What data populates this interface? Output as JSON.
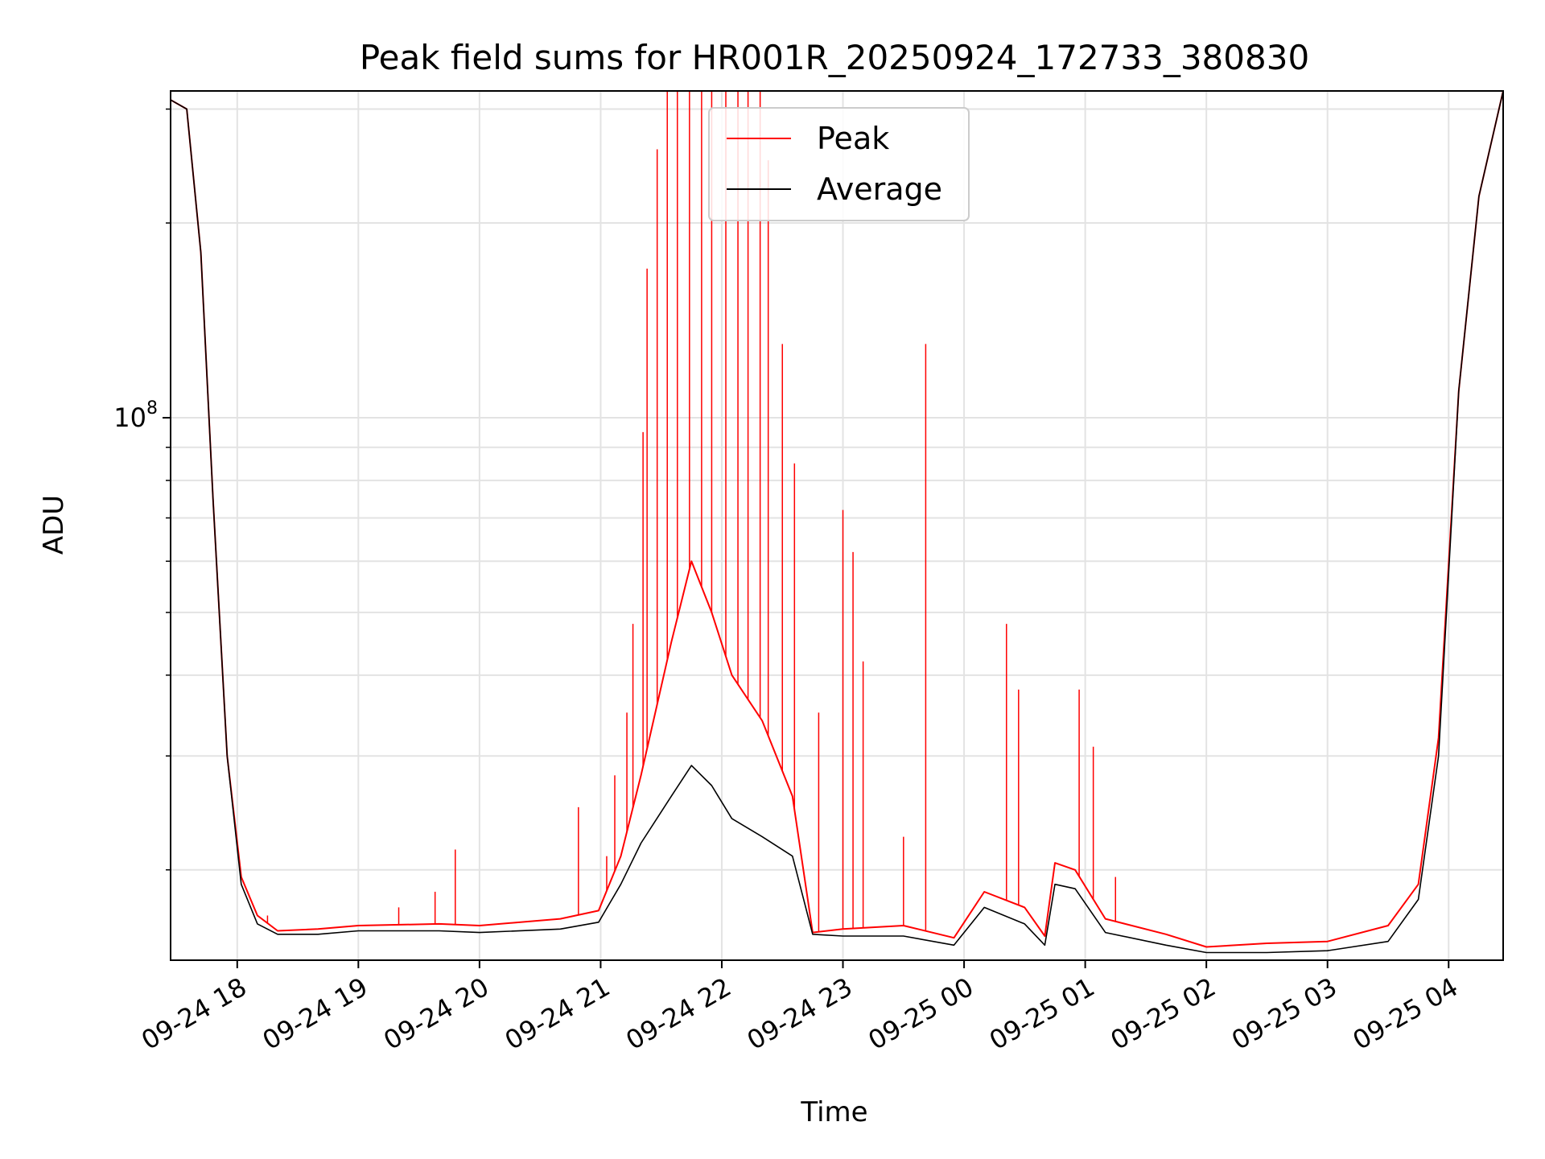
{
  "chart_data": {
    "type": "line",
    "title": "Peak field sums for HR001R_20250924_172733_380830",
    "xlabel": "Time",
    "ylabel": "ADU",
    "y_scale": "log",
    "ylim": [
      14500000,
      320000000
    ],
    "xlim": [
      "2025-09-24 17:27",
      "2025-09-25 04:27"
    ],
    "y_tick_labels": [
      {
        "value": 100000000,
        "base": "10",
        "exponent": "8"
      }
    ],
    "y_minor_ticks": [
      20000000,
      30000000,
      40000000,
      50000000,
      60000000,
      70000000,
      80000000,
      90000000,
      200000000,
      300000000
    ],
    "x_ticks": [
      {
        "t": "2025-09-24 18:00",
        "label": "09-24 18"
      },
      {
        "t": "2025-09-24 19:00",
        "label": "09-24 19"
      },
      {
        "t": "2025-09-24 20:00",
        "label": "09-24 20"
      },
      {
        "t": "2025-09-24 21:00",
        "label": "09-24 21"
      },
      {
        "t": "2025-09-24 22:00",
        "label": "09-24 22"
      },
      {
        "t": "2025-09-24 23:00",
        "label": "09-24 23"
      },
      {
        "t": "2025-09-25 00:00",
        "label": "09-25 00"
      },
      {
        "t": "2025-09-25 01:00",
        "label": "09-25 01"
      },
      {
        "t": "2025-09-25 02:00",
        "label": "09-25 02"
      },
      {
        "t": "2025-09-25 03:00",
        "label": "09-25 03"
      },
      {
        "t": "2025-09-25 04:00",
        "label": "09-25 04"
      }
    ],
    "grid": true,
    "legend_position": "top-center",
    "series": [
      {
        "name": "Peak",
        "color": "#ff0000",
        "points": [
          [
            "2025-09-24 17:27",
            310000000
          ],
          [
            "2025-09-24 17:35",
            300000000
          ],
          [
            "2025-09-24 17:42",
            180000000
          ],
          [
            "2025-09-24 17:48",
            75000000
          ],
          [
            "2025-09-24 17:55",
            30000000
          ],
          [
            "2025-09-24 18:02",
            19500000
          ],
          [
            "2025-09-24 18:10",
            17000000
          ],
          [
            "2025-09-24 18:20",
            16100000
          ],
          [
            "2025-09-24 18:40",
            16200000
          ],
          [
            "2025-09-24 19:00",
            16400000
          ],
          [
            "2025-09-24 19:40",
            16500000
          ],
          [
            "2025-09-24 20:00",
            16400000
          ],
          [
            "2025-09-24 20:40",
            16800000
          ],
          [
            "2025-09-24 20:59",
            17300000
          ],
          [
            "2025-09-24 21:10",
            21000000
          ],
          [
            "2025-09-24 21:20",
            28000000
          ],
          [
            "2025-09-24 21:35",
            45000000
          ],
          [
            "2025-09-24 21:45",
            60000000
          ],
          [
            "2025-09-24 21:55",
            50000000
          ],
          [
            "2025-09-24 22:05",
            40000000
          ],
          [
            "2025-09-24 22:20",
            34000000
          ],
          [
            "2025-09-24 22:35",
            26000000
          ],
          [
            "2025-09-24 22:45",
            16000000
          ],
          [
            "2025-09-24 23:00",
            16200000
          ],
          [
            "2025-09-24 23:30",
            16400000
          ],
          [
            "2025-09-24 23:55",
            15700000
          ],
          [
            "2025-09-25 00:10",
            18500000
          ],
          [
            "2025-09-25 00:30",
            17500000
          ],
          [
            "2025-09-25 00:40",
            15800000
          ],
          [
            "2025-09-25 00:45",
            20500000
          ],
          [
            "2025-09-25 00:55",
            20000000
          ],
          [
            "2025-09-25 01:10",
            16800000
          ],
          [
            "2025-09-25 01:40",
            15900000
          ],
          [
            "2025-09-25 02:00",
            15200000
          ],
          [
            "2025-09-25 02:30",
            15400000
          ],
          [
            "2025-09-25 03:00",
            15500000
          ],
          [
            "2025-09-25 03:30",
            16400000
          ],
          [
            "2025-09-25 03:45",
            19000000
          ],
          [
            "2025-09-25 03:55",
            32000000
          ],
          [
            "2025-09-25 04:05",
            110000000
          ],
          [
            "2025-09-25 04:15",
            220000000
          ],
          [
            "2025-09-25 04:27",
            320000000
          ]
        ]
      },
      {
        "name": "Average",
        "color": "#000000",
        "points": [
          [
            "2025-09-24 17:27",
            310000000
          ],
          [
            "2025-09-24 17:35",
            300000000
          ],
          [
            "2025-09-24 17:42",
            180000000
          ],
          [
            "2025-09-24 17:48",
            75000000
          ],
          [
            "2025-09-24 17:55",
            30000000
          ],
          [
            "2025-09-24 18:02",
            19000000
          ],
          [
            "2025-09-24 18:10",
            16500000
          ],
          [
            "2025-09-24 18:20",
            15900000
          ],
          [
            "2025-09-24 18:40",
            15900000
          ],
          [
            "2025-09-24 19:00",
            16100000
          ],
          [
            "2025-09-24 19:40",
            16100000
          ],
          [
            "2025-09-24 20:00",
            16000000
          ],
          [
            "2025-09-24 20:40",
            16200000
          ],
          [
            "2025-09-24 20:59",
            16600000
          ],
          [
            "2025-09-24 21:10",
            19000000
          ],
          [
            "2025-09-24 21:20",
            22000000
          ],
          [
            "2025-09-24 21:35",
            26000000
          ],
          [
            "2025-09-24 21:45",
            29000000
          ],
          [
            "2025-09-24 21:55",
            27000000
          ],
          [
            "2025-09-24 22:05",
            24000000
          ],
          [
            "2025-09-24 22:20",
            22500000
          ],
          [
            "2025-09-24 22:35",
            21000000
          ],
          [
            "2025-09-24 22:45",
            15900000
          ],
          [
            "2025-09-24 23:00",
            15800000
          ],
          [
            "2025-09-24 23:30",
            15800000
          ],
          [
            "2025-09-24 23:55",
            15300000
          ],
          [
            "2025-09-25 00:10",
            17500000
          ],
          [
            "2025-09-25 00:30",
            16500000
          ],
          [
            "2025-09-25 00:40",
            15300000
          ],
          [
            "2025-09-25 00:45",
            19000000
          ],
          [
            "2025-09-25 00:55",
            18700000
          ],
          [
            "2025-09-25 01:10",
            16000000
          ],
          [
            "2025-09-25 01:40",
            15300000
          ],
          [
            "2025-09-25 02:00",
            14900000
          ],
          [
            "2025-09-25 02:30",
            14900000
          ],
          [
            "2025-09-25 03:00",
            15000000
          ],
          [
            "2025-09-25 03:30",
            15500000
          ],
          [
            "2025-09-25 03:45",
            18000000
          ],
          [
            "2025-09-25 03:55",
            30000000
          ],
          [
            "2025-09-25 04:05",
            110000000
          ],
          [
            "2025-09-25 04:15",
            220000000
          ],
          [
            "2025-09-25 04:27",
            320000000
          ]
        ]
      }
    ],
    "peak_spikes": [
      [
        "2025-09-24 18:05",
        18500000
      ],
      [
        "2025-09-24 18:15",
        17000000
      ],
      [
        "2025-09-24 19:20",
        17500000
      ],
      [
        "2025-09-24 19:38",
        18500000
      ],
      [
        "2025-09-24 19:48",
        21500000
      ],
      [
        "2025-09-24 20:49",
        25000000
      ],
      [
        "2025-09-24 21:03",
        21000000
      ],
      [
        "2025-09-24 21:07",
        28000000
      ],
      [
        "2025-09-24 21:13",
        35000000
      ],
      [
        "2025-09-24 21:16",
        48000000
      ],
      [
        "2025-09-24 21:21",
        95000000
      ],
      [
        "2025-09-24 21:23",
        170000000
      ],
      [
        "2025-09-24 21:28",
        260000000
      ],
      [
        "2025-09-24 21:33",
        320000000
      ],
      [
        "2025-09-24 21:38",
        320000000
      ],
      [
        "2025-09-24 21:44",
        320000000
      ],
      [
        "2025-09-24 21:50",
        320000000
      ],
      [
        "2025-09-24 21:55",
        320000000
      ],
      [
        "2025-09-24 22:02",
        320000000
      ],
      [
        "2025-09-24 22:08",
        320000000
      ],
      [
        "2025-09-24 22:13",
        320000000
      ],
      [
        "2025-09-24 22:19",
        320000000
      ],
      [
        "2025-09-24 22:23",
        250000000
      ],
      [
        "2025-09-24 22:30",
        130000000
      ],
      [
        "2025-09-24 22:36",
        85000000
      ],
      [
        "2025-09-24 22:48",
        35000000
      ],
      [
        "2025-09-24 23:00",
        72000000
      ],
      [
        "2025-09-24 23:05",
        62000000
      ],
      [
        "2025-09-24 23:10",
        42000000
      ],
      [
        "2025-09-24 23:30",
        22500000
      ],
      [
        "2025-09-24 23:41",
        130000000
      ],
      [
        "2025-09-25 00:21",
        48000000
      ],
      [
        "2025-09-25 00:27",
        38000000
      ],
      [
        "2025-09-25 00:57",
        38000000
      ],
      [
        "2025-09-25 01:04",
        31000000
      ],
      [
        "2025-09-25 01:15",
        19500000
      ]
    ]
  }
}
